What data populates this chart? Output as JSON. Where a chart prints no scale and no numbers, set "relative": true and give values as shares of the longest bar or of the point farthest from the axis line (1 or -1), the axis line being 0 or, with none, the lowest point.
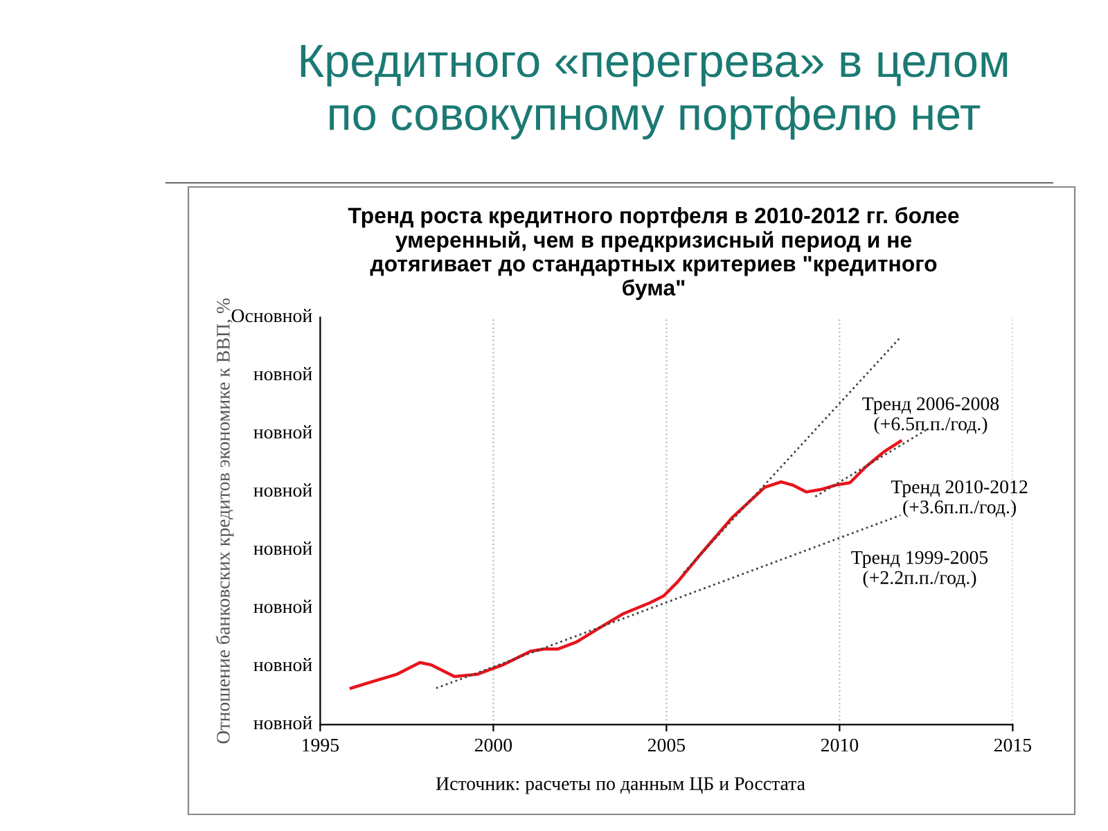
{
  "chart_data": {
    "type": "line",
    "title": "Кредитного «перегрева» в целом\nпо совокупному портфелю нет",
    "subtitle": "Тренд роста кредитного портфеля в 2010-2012 гг. более\nумеренный, чем в предкризисный период и не\nдотягивает до стандартных критериев \"кредитного\nбума\"",
    "ylabel": "Отношение банковских кредитов экономике к ВВП, %",
    "relative": true,
    "xlim": [
      1995,
      2015
    ],
    "xticks": [
      1995,
      2000,
      2005,
      2010,
      2015
    ],
    "grid": "x",
    "legend": false,
    "series": [
      {
        "color": "#e8141c",
        "line_style": "solid",
        "x": [
          1995.89,
          1996.55,
          1997.22,
          1997.88,
          1998.21,
          1998.88,
          1999.54,
          2000.27,
          2001.07,
          2001.47,
          2001.87,
          2002.4,
          2003.06,
          2003.73,
          2004.52,
          2004.92,
          2005.32,
          2005.98,
          2006.91,
          2007.84,
          2008.31,
          2008.64,
          2009.04,
          2009.44,
          2009.9,
          2010.3,
          2010.76,
          2011.29,
          2011.76
        ],
        "values": [
          0.094,
          0.112,
          0.13,
          0.16,
          0.154,
          0.124,
          0.13,
          0.154,
          0.189,
          0.195,
          0.195,
          0.213,
          0.249,
          0.285,
          0.314,
          0.332,
          0.368,
          0.439,
          0.535,
          0.612,
          0.626,
          0.618,
          0.6,
          0.606,
          0.618,
          0.624,
          0.665,
          0.704,
          0.731
        ]
      },
      {
        "color": "#404040",
        "line_style": "dotted",
        "x": [
          1998.35,
          2011.76
        ],
        "values": [
          0.094,
          0.54
        ]
      },
      {
        "color": "#404040",
        "line_style": "dotted",
        "x": [
          2005.5,
          2011.77
        ],
        "values": [
          0.392,
          1
        ]
      },
      {
        "color": "#404040",
        "line_style": "dotted",
        "x": [
          2009.3,
          2012.56
        ],
        "values": [
          0.588,
          0.763
        ]
      }
    ],
    "annotations": [
      "Тренд 2006-2008\n(+6.5п.п./год.)",
      "Тренд 2010-2012\n(+3.6п.п./год.)",
      "Тренд 1999-2005\n(+2.2п.п./год.)",
      "Источник: расчеты по данным ЦБ и Росстата",
      "новной",
      "новной",
      "новной",
      "новной",
      "новной",
      "новной",
      "новной",
      "Основной"
    ]
  }
}
